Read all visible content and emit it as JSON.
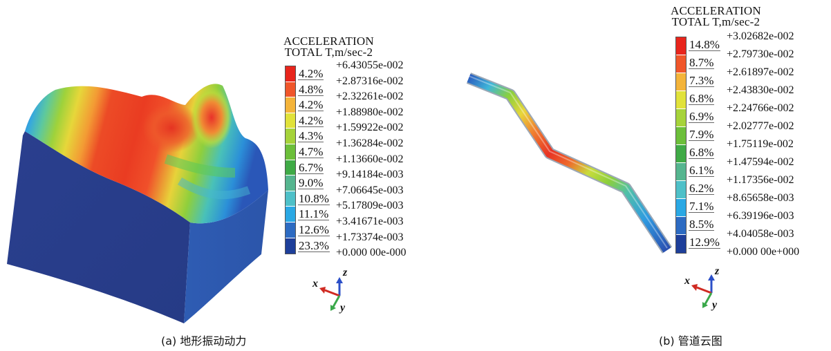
{
  "chart_data": [
    {
      "type": "heatmap",
      "caption": "(a) 地形振动动力",
      "legend": {
        "title_line1": "ACCELERATION",
        "title_line2": "TOTAL T,m/sec-2",
        "bins": [
          {
            "pct": "4.2%",
            "color": "#e8251c"
          },
          {
            "pct": "4.8%",
            "color": "#f0562a"
          },
          {
            "pct": "4.2%",
            "color": "#f4b43a"
          },
          {
            "pct": "4.2%",
            "color": "#e1e23a"
          },
          {
            "pct": "4.3%",
            "color": "#a6d33a"
          },
          {
            "pct": "4.7%",
            "color": "#6cbf3a"
          },
          {
            "pct": "6.7%",
            "color": "#3faa46"
          },
          {
            "pct": "9.0%",
            "color": "#55b58f"
          },
          {
            "pct": "10.8%",
            "color": "#4ec0c8"
          },
          {
            "pct": "11.1%",
            "color": "#2aa8e4"
          },
          {
            "pct": "12.6%",
            "color": "#2d6bc2"
          },
          {
            "pct": "23.3%",
            "color": "#1e3f9a"
          }
        ],
        "values": [
          "+6.43055e-002",
          "+2.87316e-002",
          "+2.32261e-002",
          "+1.88980e-002",
          "+1.59922e-002",
          "+1.36284e-002",
          "+1.13660e-002",
          "+9.14184e-003",
          "+7.06645e-003",
          "+5.17809e-003",
          "+3.41671e-003",
          "+1.73374e-003",
          "+0.000 00e-000"
        ]
      },
      "axes": {
        "x": "x",
        "y": "y",
        "z": "z"
      }
    },
    {
      "type": "heatmap",
      "caption": "(b) 管道云图",
      "legend": {
        "title_line1": "ACCELERATION",
        "title_line2": "TOTAL T,m/sec-2",
        "bins": [
          {
            "pct": "14.8%",
            "color": "#e8251c"
          },
          {
            "pct": "8.7%",
            "color": "#f0562a"
          },
          {
            "pct": "7.3%",
            "color": "#f4b43a"
          },
          {
            "pct": "6.8%",
            "color": "#e1e23a"
          },
          {
            "pct": "6.9%",
            "color": "#a6d33a"
          },
          {
            "pct": "7.9%",
            "color": "#6cbf3a"
          },
          {
            "pct": "6.8%",
            "color": "#3faa46"
          },
          {
            "pct": "6.1%",
            "color": "#55b58f"
          },
          {
            "pct": "6.2%",
            "color": "#4ec0c8"
          },
          {
            "pct": "7.1%",
            "color": "#2aa8e4"
          },
          {
            "pct": "8.5%",
            "color": "#2d6bc2"
          },
          {
            "pct": "12.9%",
            "color": "#1e3f9a"
          }
        ],
        "values": [
          "+3.02682e-002",
          "+2.79730e-002",
          "+2.61897e-002",
          "+2.43830e-002",
          "+2.24766e-002",
          "+2.02777e-002",
          "+1.75119e-002",
          "+1.47594e-002",
          "+1.17356e-002",
          "+8.65658e-003",
          "+6.39196e-003",
          "+4.04058e-003",
          "+0.000 00e+000"
        ]
      },
      "axes": {
        "x": "x",
        "y": "y",
        "z": "z"
      }
    }
  ]
}
